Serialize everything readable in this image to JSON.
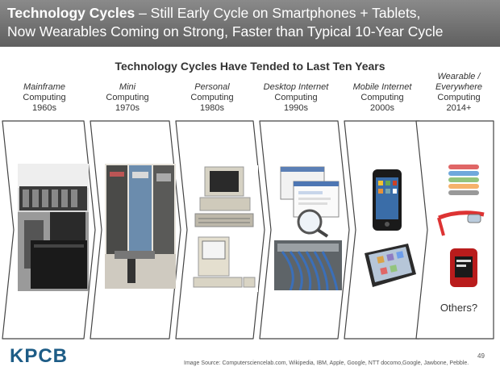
{
  "header": {
    "title_bold": "Technology Cycles",
    "title_rest": " – Still Early Cycle on Smartphones + Tablets,",
    "line2": "Now Wearables Coming on Strong, Faster than Typical 10-Year Cycle"
  },
  "subtitle": "Technology Cycles Have Tended to Last Ten Years",
  "eras": [
    {
      "name": "Mainframe",
      "line2": "Computing",
      "decade": "1960s"
    },
    {
      "name": "Mini",
      "line2": "Computing",
      "decade": "1970s"
    },
    {
      "name": "Personal",
      "line2": "Computing",
      "decade": "1980s"
    },
    {
      "name": "Desktop Internet",
      "line2": "Computing",
      "decade": "1990s"
    },
    {
      "name": "Mobile Internet",
      "line2": "Computing",
      "decade": "2000s"
    },
    {
      "name": "Wearable /",
      "name2": "Everywhere",
      "line2": "Computing",
      "decade": "2014+"
    }
  ],
  "others_label": "Others?",
  "logo": "KPCB",
  "source": "Image Source: Computersciencelab.com, Wikipedia, IBM, Apple, Google, NTT docomo,Google, Jawbone, Pebble.",
  "page_number": "49",
  "colors": {
    "header_bg": "#707070",
    "logo": "#1d5c86",
    "arrow_stroke": "#444444"
  }
}
